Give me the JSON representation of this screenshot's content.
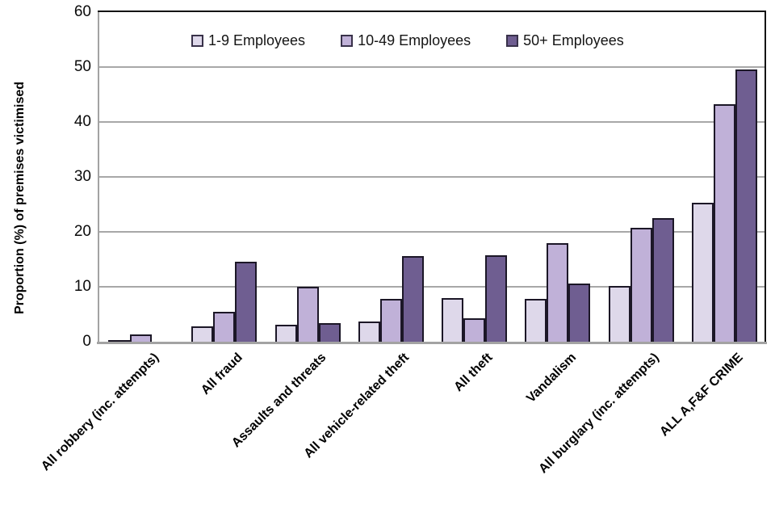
{
  "chart_data": {
    "type": "bar",
    "title": "",
    "y_axis": {
      "title": "Proportion (%) of premises victimised",
      "min": 0,
      "max": 60,
      "tick_step": 10,
      "ticks": [
        0,
        10,
        20,
        30,
        40,
        50,
        60
      ]
    },
    "x_axis": {
      "title": ""
    },
    "categories": [
      "All robbery (inc. attempts)",
      "All fraud",
      "Assaults and threats",
      "All vehicle-related theft",
      "All theft",
      "Vandalism",
      "All burglary (inc. attempts)",
      "ALL A,F&F CRIME"
    ],
    "series": [
      {
        "name": "1-9 Employees",
        "color": "#ded8ea",
        "values": [
          0.3,
          2.8,
          3.1,
          3.7,
          8.0,
          7.8,
          10.2,
          25.3
        ]
      },
      {
        "name": "10-49 Employees",
        "color": "#c0b1d8",
        "values": [
          1.3,
          5.4,
          10.0,
          7.8,
          4.2,
          18.0,
          20.7,
          43.3
        ]
      },
      {
        "name": "50+ Employees",
        "color": "#6f5e91",
        "values": [
          0,
          14.5,
          3.4,
          15.6,
          15.8,
          10.6,
          22.5,
          49.5
        ]
      }
    ],
    "legend_position": "top-center-inside",
    "grid": "horizontal",
    "style": {
      "bar_outline": "#1c1727",
      "gridline": "#a8a8a8",
      "axis_line": "#a3a3a3",
      "plot_border": "#141414",
      "background": "#ffffff"
    }
  }
}
